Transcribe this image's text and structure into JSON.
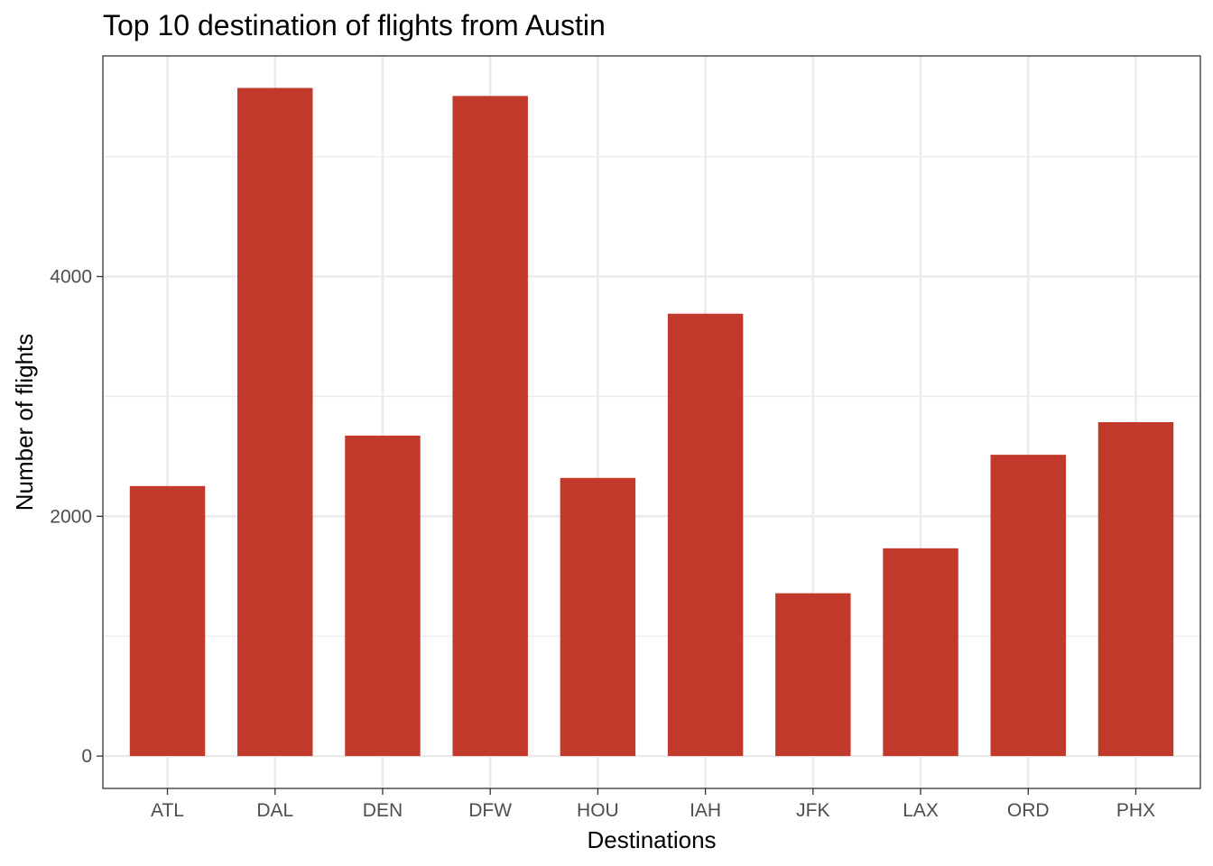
{
  "chart_data": {
    "type": "bar",
    "title": "Top 10 destination of flights from Austin",
    "xlabel": "Destinations",
    "ylabel": "Number of flights",
    "categories": [
      "ATL",
      "DAL",
      "DEN",
      "DFW",
      "HOU",
      "IAH",
      "JFK",
      "LAX",
      "ORD",
      "PHX"
    ],
    "values": [
      2252,
      5573,
      2673,
      5506,
      2320,
      3690,
      1358,
      1733,
      2513,
      2785
    ],
    "ylim": [
      -270,
      5840
    ],
    "yticks": [
      0,
      2000,
      4000
    ],
    "ytick_labels": [
      "0",
      "2000",
      "4000"
    ],
    "grid": true,
    "bar_color": "#c0392b",
    "legend": "none"
  }
}
